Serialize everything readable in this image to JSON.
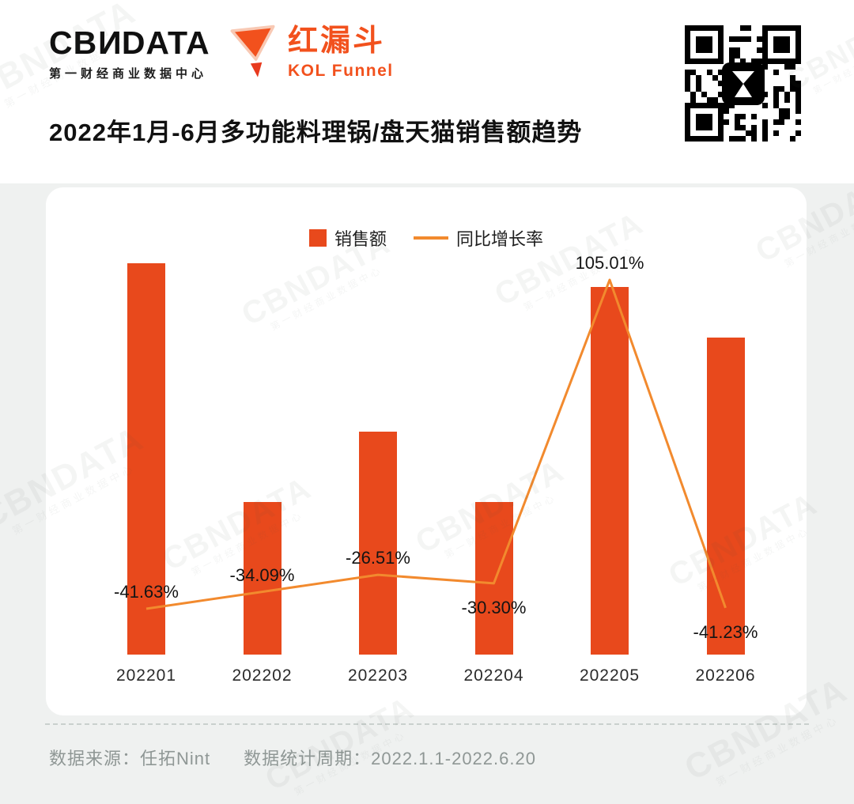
{
  "page": {
    "background": "#eff1f0"
  },
  "header": {
    "logo": {
      "prefix": "CB",
      "n": "N",
      "suffix": "DATA",
      "subtitle": "第一财经商业数据中心"
    },
    "kol": {
      "name": "红漏斗",
      "subname": "KOL Funnel",
      "icon": "funnel-icon",
      "color": "#f2511d"
    },
    "qr": {
      "icon": "qr-code",
      "center_icon": "hourglass-funnel-icon"
    },
    "title": "2022年1月-6月多功能料理锅/盘天猫销售额趋势"
  },
  "legend": {
    "sales": "销售额",
    "growth": "同比增长率"
  },
  "chart_data": {
    "type": "bar",
    "title": "2022年1月-6月多功能料理锅/盘天猫销售额趋势",
    "categories": [
      "202201",
      "202202",
      "202203",
      "202204",
      "202205",
      "202206"
    ],
    "series": [
      {
        "name": "销售额",
        "chart": "bar",
        "color": "#e8491c",
        "values_relative_estimated": [
          100,
          39,
          57,
          39,
          94,
          81
        ],
        "note": "no value axis shown; bar heights estimated relative, Jan 2022 = 100"
      },
      {
        "name": "同比增长率",
        "chart": "line",
        "color": "#f28a2e",
        "values_percent": [
          -41.63,
          -34.09,
          -26.51,
          -30.3,
          105.01,
          -41.23
        ]
      }
    ],
    "point_labels": [
      "-41.63%",
      "-34.09%",
      "-26.51%",
      "-30.30%",
      "105.01%",
      "-41.23%"
    ],
    "point_label_side": [
      "above",
      "above",
      "above",
      "below",
      "above",
      "below"
    ],
    "legend_entries": [
      "销售额",
      "同比增长率"
    ],
    "legend_position": "top-center",
    "gridlines": false,
    "value_axis_visible": false
  },
  "footer": {
    "source": "数据来源：任拓Nint",
    "period": "数据统计周期：2022.1.1-2022.6.20"
  },
  "watermark": {
    "text": "CBNDATA",
    "subtext": "第一财经商业数据中心"
  }
}
